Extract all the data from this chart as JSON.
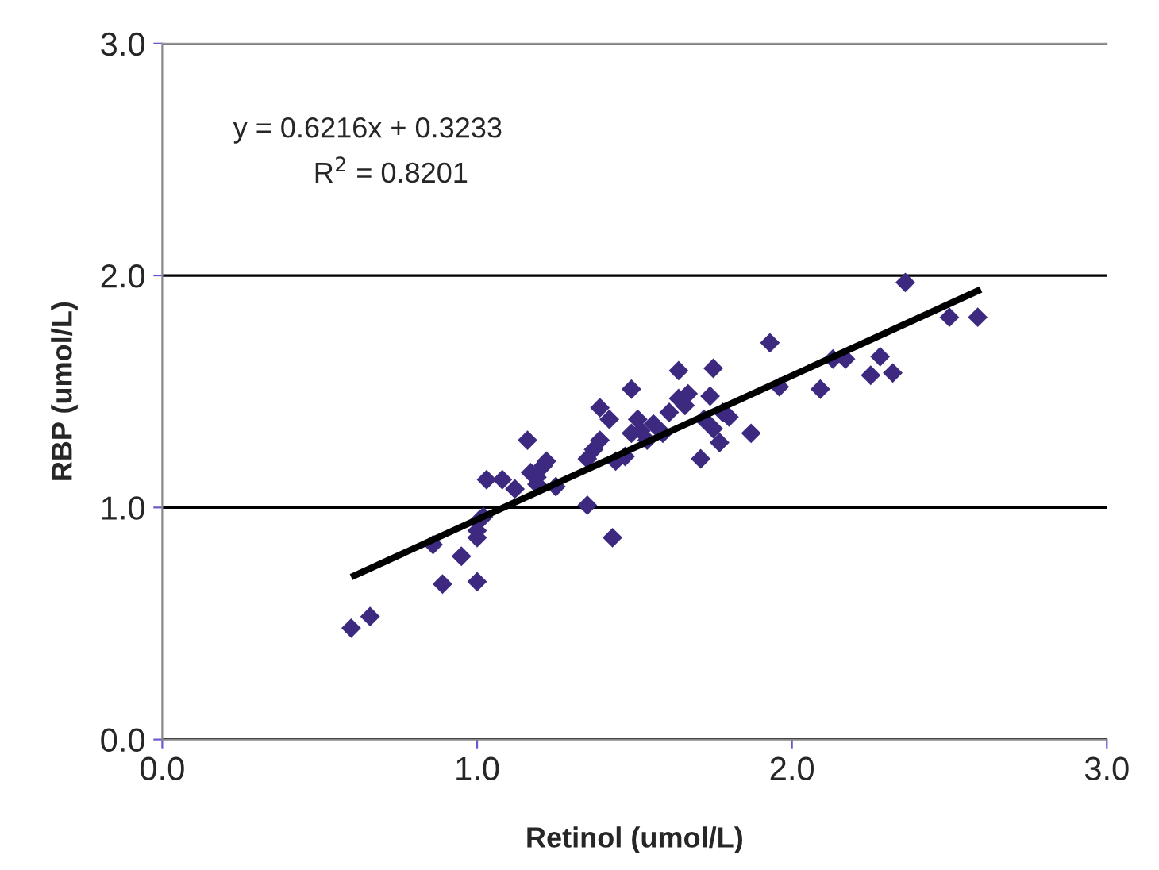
{
  "chart_data": {
    "type": "scatter",
    "xlabel": "Retinol (umol/L)",
    "ylabel": "RBP (umol/L)",
    "annotations": [
      "y = 0.6216x + 0.3233",
      "R$^{2}$ = 0.8201"
    ],
    "xlim": [
      0,
      3
    ],
    "ylim": [
      0,
      3
    ],
    "xticks": [
      {
        "value": 0,
        "label": "0.0"
      },
      {
        "value": 1,
        "label": "1.0"
      },
      {
        "value": 2,
        "label": "2.0"
      },
      {
        "value": 3,
        "label": "3.0"
      }
    ],
    "yticks": [
      {
        "value": 0,
        "label": "0.0"
      },
      {
        "value": 1,
        "label": "1.0"
      },
      {
        "value": 2,
        "label": "2.0"
      },
      {
        "value": 3,
        "label": "3.0"
      }
    ],
    "grid": "y",
    "series": [
      {
        "marker": "diamond",
        "color": "#3d2a80",
        "x": [
          0.6,
          0.66,
          0.86,
          0.89,
          0.95,
          1.0,
          1.0,
          1.0,
          1.01,
          1.02,
          1.03,
          1.08,
          1.12,
          1.16,
          1.17,
          1.19,
          1.21,
          1.19,
          1.22,
          1.25,
          1.35,
          1.43,
          1.35,
          1.37,
          1.39,
          1.42,
          1.39,
          1.44,
          1.47,
          1.49,
          1.49,
          1.51,
          1.52,
          1.54,
          1.56,
          1.59,
          1.61,
          1.64,
          1.64,
          1.66,
          1.67,
          1.71,
          1.72,
          1.74,
          1.75,
          1.75,
          1.78,
          1.8,
          1.77,
          1.87,
          1.93,
          1.96,
          2.09,
          2.13,
          2.17,
          2.25,
          2.28,
          2.32,
          2.36,
          2.5,
          2.59
        ],
        "values": [
          0.48,
          0.53,
          0.84,
          0.67,
          0.79,
          0.68,
          0.87,
          0.9,
          0.95,
          0.96,
          1.12,
          1.12,
          1.08,
          1.29,
          1.15,
          1.13,
          1.18,
          1.1,
          1.2,
          1.09,
          1.01,
          0.87,
          1.21,
          1.25,
          1.43,
          1.38,
          1.29,
          1.2,
          1.22,
          1.51,
          1.32,
          1.38,
          1.33,
          1.29,
          1.36,
          1.32,
          1.41,
          1.59,
          1.47,
          1.44,
          1.49,
          1.21,
          1.38,
          1.48,
          1.6,
          1.34,
          1.41,
          1.39,
          1.28,
          1.32,
          1.71,
          1.52,
          1.51,
          1.64,
          1.64,
          1.57,
          1.65,
          1.58,
          1.97,
          1.82,
          1.82
        ]
      },
      {
        "type": "line",
        "marker": "none",
        "color": "#000000",
        "x": [
          0.6,
          2.6
        ],
        "values": [
          0.7,
          1.94
        ]
      }
    ]
  }
}
